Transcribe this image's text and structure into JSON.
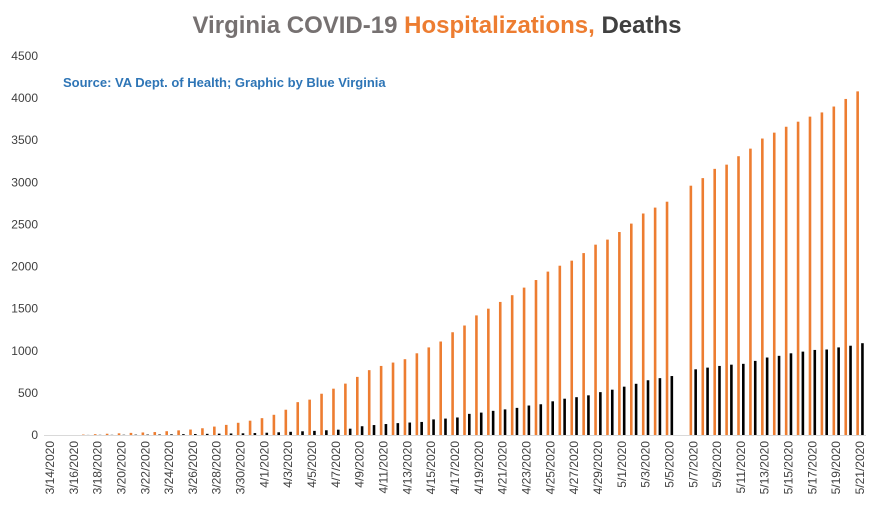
{
  "chart_data": {
    "type": "bar",
    "title_parts": [
      {
        "text": "Virginia COVID-19 ",
        "color": "#767171"
      },
      {
        "text": "Hospitalizations,",
        "color": "#ED7D31"
      },
      {
        "text": " Deaths",
        "color": "#404040"
      }
    ],
    "source": "Source: VA Dept. of Health; Graphic by Blue Virginia",
    "source_color": "#2E75B6",
    "ylim": [
      0,
      4500
    ],
    "yticks": [
      0,
      500,
      1000,
      1500,
      2000,
      2500,
      3000,
      3500,
      4000,
      4500
    ],
    "grid": false,
    "legend": "none",
    "categories": [
      "3/14/2020",
      "3/15/2020",
      "3/16/2020",
      "3/17/2020",
      "3/18/2020",
      "3/19/2020",
      "3/20/2020",
      "3/21/2020",
      "3/22/2020",
      "3/23/2020",
      "3/24/2020",
      "3/25/2020",
      "3/26/2020",
      "3/27/2020",
      "3/28/2020",
      "3/29/2020",
      "3/30/2020",
      "3/31/2020",
      "4/1/2020",
      "4/2/2020",
      "4/3/2020",
      "4/4/2020",
      "4/5/2020",
      "4/6/2020",
      "4/7/2020",
      "4/8/2020",
      "4/9/2020",
      "4/10/2020",
      "4/11/2020",
      "4/12/2020",
      "4/13/2020",
      "4/14/2020",
      "4/15/2020",
      "4/16/2020",
      "4/17/2020",
      "4/18/2020",
      "4/19/2020",
      "4/20/2020",
      "4/21/2020",
      "4/22/2020",
      "4/23/2020",
      "4/24/2020",
      "4/25/2020",
      "4/26/2020",
      "4/27/2020",
      "4/28/2020",
      "4/29/2020",
      "4/30/2020",
      "5/1/2020",
      "5/2/2020",
      "5/3/2020",
      "5/4/2020",
      "5/5/2020",
      "5/6/2020",
      "5/7/2020",
      "5/8/2020",
      "5/9/2020",
      "5/10/2020",
      "5/11/2020",
      "5/12/2020",
      "5/13/2020",
      "5/14/2020",
      "5/15/2020",
      "5/16/2020",
      "5/17/2020",
      "5/18/2020",
      "5/19/2020",
      "5/20/2020",
      "5/21/2020"
    ],
    "xtick_labels": [
      "3/14/2020",
      "",
      "3/16/2020",
      "",
      "3/18/2020",
      "",
      "3/20/2020",
      "",
      "3/22/2020",
      "",
      "3/24/2020",
      "",
      "3/26/2020",
      "",
      "3/28/2020",
      "",
      "3/30/2020",
      "",
      "4/1/2020",
      "",
      "4/3/2020",
      "",
      "4/5/2020",
      "",
      "4/7/2020",
      "",
      "4/9/2020",
      "",
      "4/11/2020",
      "",
      "4/13/2020",
      "",
      "4/15/2020",
      "",
      "4/17/2020",
      "",
      "4/19/2020",
      "",
      "4/21/2020",
      "",
      "4/23/2020",
      "",
      "4/25/2020",
      "",
      "4/27/2020",
      "",
      "4/29/2020",
      "",
      "5/1/2020",
      "",
      "5/3/2020",
      "",
      "5/5/2020",
      "",
      "5/7/2020",
      "",
      "5/9/2020",
      "",
      "5/11/2020",
      "",
      "5/13/2020",
      "",
      "5/15/2020",
      "",
      "5/17/2020",
      "",
      "5/19/2020",
      "",
      "5/21/2020"
    ],
    "series": [
      {
        "color": "#ED7D31",
        "values": [
          0,
          0,
          0,
          5,
          10,
          15,
          20,
          25,
          30,
          35,
          45,
          55,
          65,
          80,
          100,
          120,
          145,
          170,
          200,
          240,
          300,
          390,
          420,
          490,
          550,
          610,
          690,
          770,
          820,
          860,
          900,
          970,
          1040,
          1110,
          1220,
          1300,
          1420,
          1500,
          1580,
          1660,
          1750,
          1840,
          1940,
          2010,
          2070,
          2160,
          2260,
          2320,
          2410,
          2510,
          2630,
          2700,
          2770,
          0,
          2960,
          3050,
          3160,
          3210,
          3310,
          3400,
          3520,
          3590,
          3660,
          3720,
          3780,
          3830,
          3900,
          3990,
          4080
        ]
      },
      {
        "color": "#000000",
        "values": [
          0,
          0,
          0,
          1,
          2,
          2,
          3,
          4,
          5,
          6,
          8,
          10,
          12,
          14,
          16,
          18,
          20,
          23,
          27,
          32,
          38,
          44,
          49,
          56,
          63,
          75,
          104,
          118,
          130,
          141,
          148,
          155,
          185,
          195,
          208,
          251,
          266,
          287,
          304,
          322,
          350,
          365,
          400,
          431,
          449,
          471,
          509,
          538,
          574,
          608,
          650,
          675,
          700,
          0,
          780,
          800,
          820,
          835,
          845,
          880,
          920,
          940,
          970,
          990,
          1010,
          1015,
          1040,
          1060,
          1090
        ]
      }
    ]
  }
}
